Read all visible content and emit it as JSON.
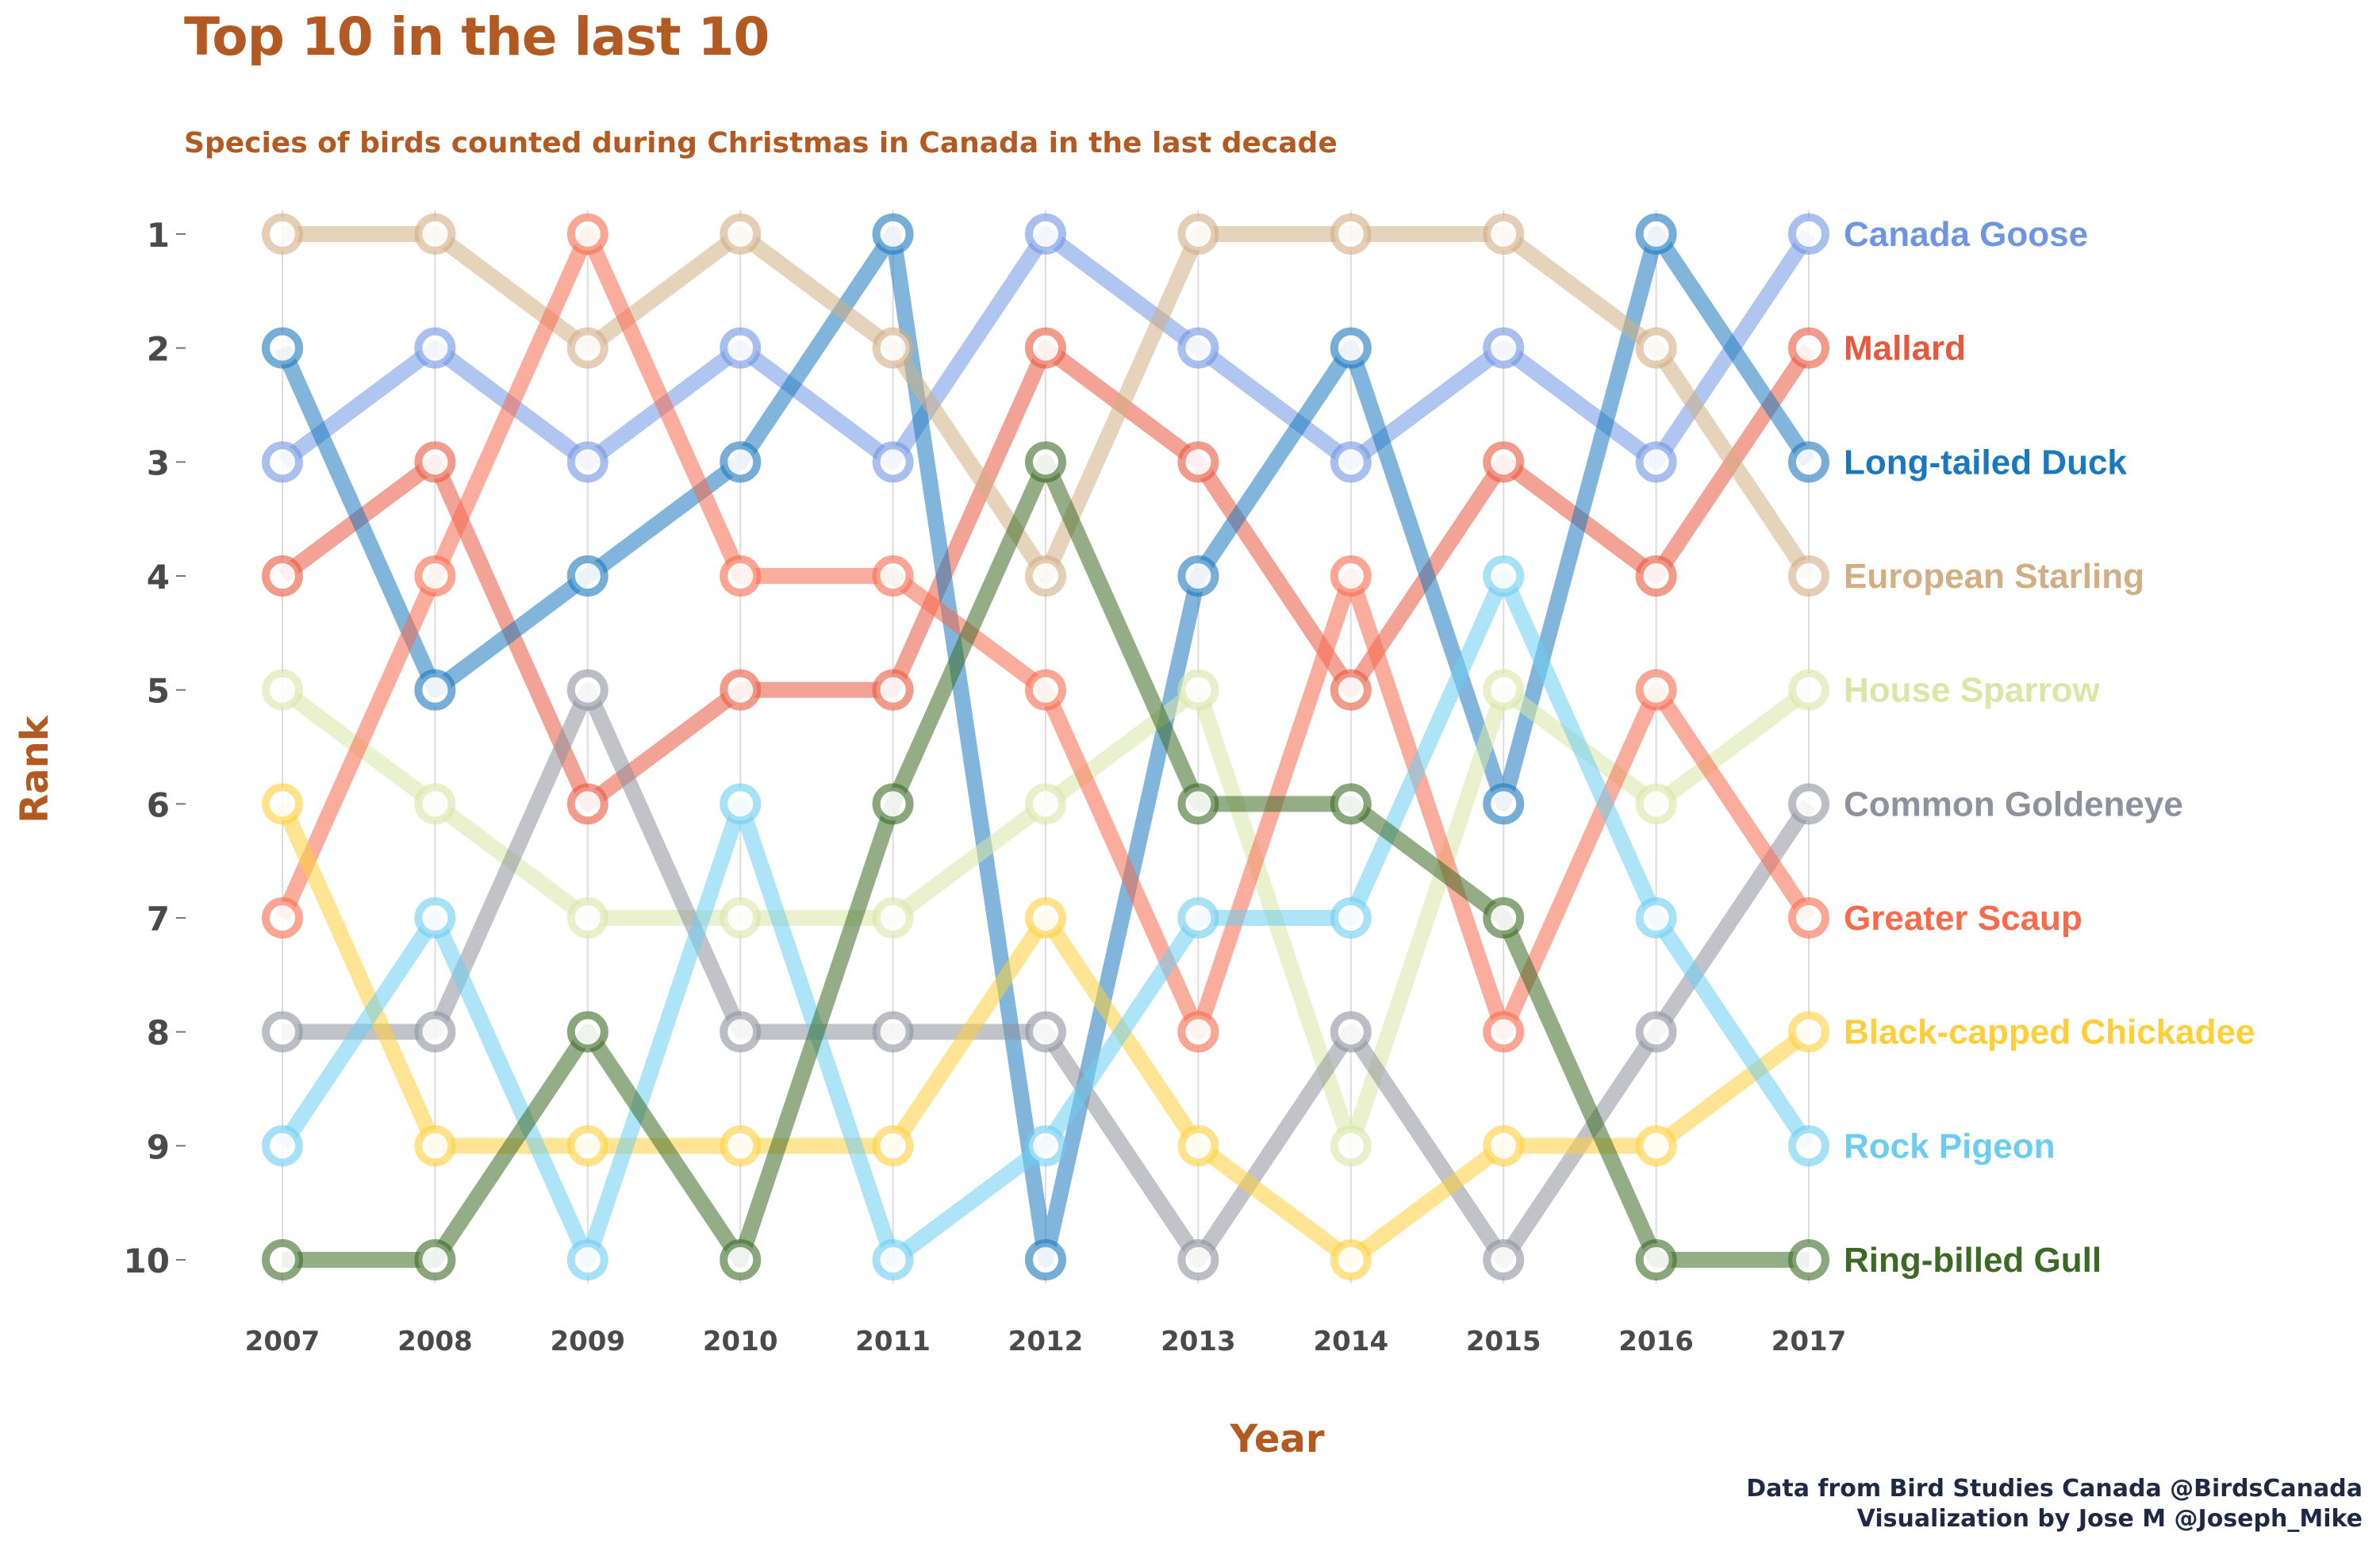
{
  "chart_data": {
    "type": "line",
    "title": "Top 10 in the last 10",
    "subtitle": "Species of birds counted during Christmas in Canada in the last decade",
    "xlabel": "Year",
    "ylabel": "Rank",
    "x": [
      2007,
      2008,
      2009,
      2010,
      2011,
      2012,
      2013,
      2014,
      2015,
      2016,
      2017
    ],
    "yticks": [
      1,
      2,
      3,
      4,
      5,
      6,
      7,
      8,
      9,
      10
    ],
    "ylim": [
      1,
      10
    ],
    "y_reversed": true,
    "grid": "vertical",
    "legend": "direct labels at right",
    "series": [
      {
        "name": "Canada Goose",
        "color": "#6f95e2",
        "values": [
          3,
          2,
          3,
          2,
          3,
          1,
          2,
          3,
          2,
          3,
          1
        ]
      },
      {
        "name": "Mallard",
        "color": "#e8583e",
        "values": [
          4,
          3,
          6,
          5,
          5,
          2,
          3,
          5,
          3,
          4,
          2
        ]
      },
      {
        "name": "Long-tailed Duck",
        "color": "#1a78be",
        "values": [
          2,
          5,
          4,
          3,
          1,
          10,
          4,
          2,
          6,
          1,
          3
        ]
      },
      {
        "name": "European Starling",
        "color": "#d2ae84",
        "values": [
          1,
          1,
          2,
          1,
          2,
          4,
          1,
          1,
          1,
          2,
          4
        ]
      },
      {
        "name": "House Sparrow",
        "color": "#d9e6a6",
        "values": [
          5,
          6,
          7,
          7,
          7,
          6,
          5,
          9,
          5,
          6,
          5
        ]
      },
      {
        "name": "Common Goldeneye",
        "color": "#8e929c",
        "values": [
          8,
          8,
          5,
          8,
          8,
          8,
          10,
          8,
          10,
          8,
          6
        ]
      },
      {
        "name": "Greater Scaup",
        "color": "#f86a4c",
        "values": [
          7,
          4,
          1,
          4,
          4,
          5,
          8,
          4,
          8,
          5,
          7
        ]
      },
      {
        "name": "Black-capped Chickadee",
        "color": "#ffcf3a",
        "values": [
          6,
          9,
          9,
          9,
          9,
          7,
          9,
          10,
          9,
          9,
          8
        ]
      },
      {
        "name": "Rock Pigeon",
        "color": "#6ccdf0",
        "values": [
          9,
          7,
          10,
          6,
          10,
          9,
          7,
          7,
          4,
          7,
          9
        ]
      },
      {
        "name": "Ring-billed Gull",
        "color": "#3c6a24",
        "values": [
          10,
          10,
          8,
          10,
          6,
          3,
          6,
          6,
          7,
          10,
          10
        ]
      }
    ]
  },
  "caption": {
    "line1": "Data from Bird Studies Canada @BirdsCanada",
    "line2": "Visualization by Jose M @Joseph_Mike"
  },
  "colors": {
    "title": "#b35a22",
    "tick_text": "#4a4a4a",
    "caption": "#1e2a44"
  }
}
